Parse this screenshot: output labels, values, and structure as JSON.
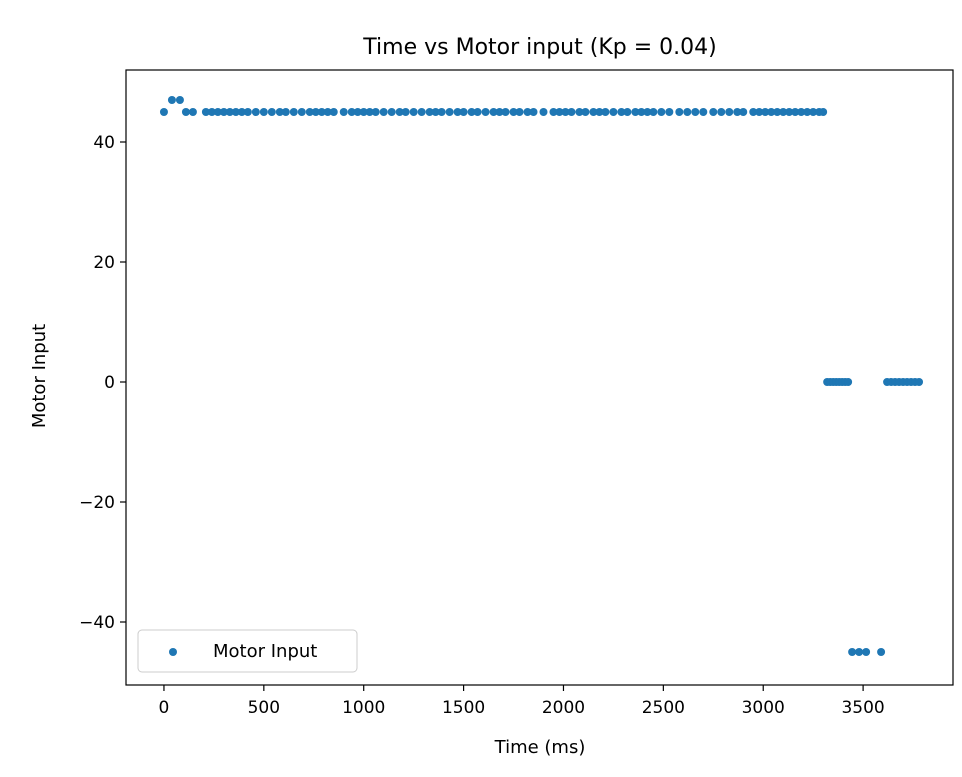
{
  "chart_data": {
    "type": "scatter",
    "title": "Time vs Motor input (Kp = 0.04)",
    "xlabel": "Time (ms)",
    "ylabel": "Motor Input",
    "xlim": [
      -190,
      3950
    ],
    "ylim": [
      -50.5,
      52
    ],
    "xticks": [
      0,
      500,
      1000,
      1500,
      2000,
      2500,
      3000,
      3500
    ],
    "yticks": [
      -40,
      -20,
      0,
      20,
      40
    ],
    "grid": false,
    "legend_position": "lower-left",
    "series": [
      {
        "name": "Motor Input",
        "color": "#1f77b4",
        "points": [
          [
            0,
            45
          ],
          [
            40,
            47
          ],
          [
            80,
            47
          ],
          [
            110,
            45
          ],
          [
            145,
            45
          ],
          [
            210,
            45
          ],
          [
            240,
            45
          ],
          [
            270,
            45
          ],
          [
            300,
            45
          ],
          [
            330,
            45
          ],
          [
            360,
            45
          ],
          [
            390,
            45
          ],
          [
            420,
            45
          ],
          [
            460,
            45
          ],
          [
            500,
            45
          ],
          [
            540,
            45
          ],
          [
            580,
            45
          ],
          [
            610,
            45
          ],
          [
            650,
            45
          ],
          [
            690,
            45
          ],
          [
            730,
            45
          ],
          [
            760,
            45
          ],
          [
            790,
            45
          ],
          [
            820,
            45
          ],
          [
            850,
            45
          ],
          [
            900,
            45
          ],
          [
            940,
            45
          ],
          [
            970,
            45
          ],
          [
            1000,
            45
          ],
          [
            1030,
            45
          ],
          [
            1060,
            45
          ],
          [
            1100,
            45
          ],
          [
            1140,
            45
          ],
          [
            1180,
            45
          ],
          [
            1210,
            45
          ],
          [
            1250,
            45
          ],
          [
            1290,
            45
          ],
          [
            1330,
            45
          ],
          [
            1360,
            45
          ],
          [
            1390,
            45
          ],
          [
            1430,
            45
          ],
          [
            1470,
            45
          ],
          [
            1500,
            45
          ],
          [
            1540,
            45
          ],
          [
            1570,
            45
          ],
          [
            1610,
            45
          ],
          [
            1650,
            45
          ],
          [
            1680,
            45
          ],
          [
            1710,
            45
          ],
          [
            1750,
            45
          ],
          [
            1780,
            45
          ],
          [
            1820,
            45
          ],
          [
            1850,
            45
          ],
          [
            1900,
            45
          ],
          [
            1950,
            45
          ],
          [
            1980,
            45
          ],
          [
            2010,
            45
          ],
          [
            2040,
            45
          ],
          [
            2080,
            45
          ],
          [
            2110,
            45
          ],
          [
            2150,
            45
          ],
          [
            2180,
            45
          ],
          [
            2210,
            45
          ],
          [
            2250,
            45
          ],
          [
            2290,
            45
          ],
          [
            2320,
            45
          ],
          [
            2360,
            45
          ],
          [
            2390,
            45
          ],
          [
            2420,
            45
          ],
          [
            2450,
            45
          ],
          [
            2490,
            45
          ],
          [
            2530,
            45
          ],
          [
            2580,
            45
          ],
          [
            2620,
            45
          ],
          [
            2660,
            45
          ],
          [
            2700,
            45
          ],
          [
            2750,
            45
          ],
          [
            2790,
            45
          ],
          [
            2830,
            45
          ],
          [
            2870,
            45
          ],
          [
            2900,
            45
          ],
          [
            2950,
            45
          ],
          [
            2980,
            45
          ],
          [
            3010,
            45
          ],
          [
            3040,
            45
          ],
          [
            3070,
            45
          ],
          [
            3100,
            45
          ],
          [
            3130,
            45
          ],
          [
            3160,
            45
          ],
          [
            3190,
            45
          ],
          [
            3220,
            45
          ],
          [
            3250,
            45
          ],
          [
            3280,
            45
          ],
          [
            3300,
            45
          ],
          [
            3320,
            0
          ],
          [
            3335,
            0
          ],
          [
            3350,
            0
          ],
          [
            3365,
            0
          ],
          [
            3380,
            0
          ],
          [
            3395,
            0
          ],
          [
            3410,
            0
          ],
          [
            3425,
            0
          ],
          [
            3445,
            -45
          ],
          [
            3480,
            -45
          ],
          [
            3515,
            -45
          ],
          [
            3590,
            -45
          ],
          [
            3620,
            0
          ],
          [
            3640,
            0
          ],
          [
            3660,
            0
          ],
          [
            3680,
            0
          ],
          [
            3700,
            0
          ],
          [
            3720,
            0
          ],
          [
            3740,
            0
          ],
          [
            3760,
            0
          ],
          [
            3780,
            0
          ]
        ]
      }
    ]
  }
}
